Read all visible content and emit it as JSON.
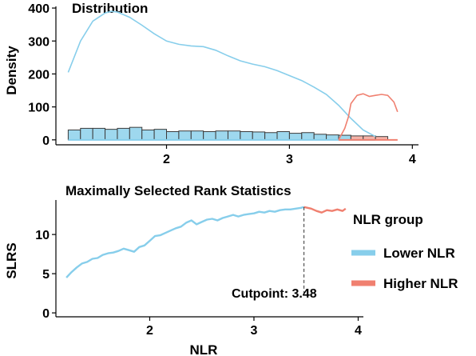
{
  "colors": {
    "lower": "#87CEEB",
    "higher": "#F08070",
    "bar_fill": "#9ED8EE",
    "bar_stroke": "#3C3C3C",
    "axis": "#000000"
  },
  "legend": {
    "title": "NLR group",
    "items": [
      {
        "label": "Lower NLR",
        "color": "#87CEEB"
      },
      {
        "label": "Higher NLR",
        "color": "#F08070"
      }
    ]
  },
  "chart_data": [
    {
      "type": "histogram+density",
      "title": "Distribution",
      "xlabel": "",
      "ylabel": "Density",
      "xlim": [
        1.1,
        4.05
      ],
      "ylim": [
        -15,
        405
      ],
      "x_ticks": [
        2,
        3,
        4
      ],
      "y_ticks": [
        0,
        100,
        200,
        300,
        400
      ],
      "grid": false,
      "histogram": {
        "bin_edges": [
          1.2,
          1.3,
          1.4,
          1.5,
          1.6,
          1.7,
          1.8,
          1.9,
          2.0,
          2.1,
          2.2,
          2.3,
          2.4,
          2.5,
          2.6,
          2.7,
          2.8,
          2.9,
          3.0,
          3.1,
          3.2,
          3.3,
          3.4,
          3.5,
          3.6,
          3.7,
          3.8
        ],
        "counts": [
          30,
          35,
          35,
          32,
          35,
          38,
          30,
          32,
          25,
          27,
          27,
          25,
          27,
          27,
          25,
          24,
          22,
          25,
          20,
          22,
          17,
          15,
          14,
          12,
          12,
          10
        ],
        "groups": [
          "lower",
          "lower",
          "lower",
          "lower",
          "lower",
          "lower",
          "lower",
          "lower",
          "lower",
          "lower",
          "lower",
          "lower",
          "lower",
          "lower",
          "lower",
          "lower",
          "lower",
          "lower",
          "lower",
          "lower",
          "lower",
          "lower",
          "lower",
          "higher",
          "higher",
          "higher"
        ]
      },
      "series": [
        {
          "group": "lower",
          "x": [
            1.2,
            1.3,
            1.4,
            1.5,
            1.55,
            1.6,
            1.7,
            1.8,
            1.9,
            2.0,
            2.1,
            2.2,
            2.3,
            2.4,
            2.5,
            2.6,
            2.7,
            2.8,
            2.9,
            3.0,
            3.1,
            3.2,
            3.3,
            3.4,
            3.5,
            3.6,
            3.7
          ],
          "y": [
            205,
            300,
            360,
            385,
            390,
            388,
            372,
            348,
            322,
            300,
            290,
            285,
            283,
            272,
            255,
            240,
            230,
            222,
            210,
            195,
            180,
            160,
            138,
            105,
            65,
            30,
            10
          ]
        },
        {
          "group": "higher",
          "x": [
            3.4,
            3.45,
            3.48,
            3.5,
            3.55,
            3.6,
            3.65,
            3.7,
            3.75,
            3.8,
            3.85,
            3.88
          ],
          "y": [
            0,
            35,
            70,
            110,
            135,
            140,
            132,
            135,
            138,
            135,
            115,
            85
          ]
        }
      ]
    },
    {
      "type": "line",
      "title": "Maximally Selected Rank Statistics",
      "xlabel": "NLR",
      "ylabel": "SLRS",
      "xlim": [
        1.1,
        4.05
      ],
      "ylim": [
        -0.5,
        14.4
      ],
      "x_ticks": [
        2,
        3,
        4
      ],
      "y_ticks": [
        0,
        5,
        10
      ],
      "grid": false,
      "cutpoint": 3.48,
      "cutpoint_label": "Cutpoint: 3.48",
      "series": [
        {
          "group": "lower",
          "x": [
            1.2,
            1.25,
            1.3,
            1.35,
            1.4,
            1.45,
            1.5,
            1.55,
            1.6,
            1.65,
            1.7,
            1.75,
            1.8,
            1.85,
            1.9,
            1.95,
            2.0,
            2.05,
            2.1,
            2.15,
            2.2,
            2.25,
            2.3,
            2.35,
            2.4,
            2.45,
            2.5,
            2.55,
            2.6,
            2.65,
            2.7,
            2.75,
            2.8,
            2.85,
            2.9,
            2.95,
            3.0,
            3.05,
            3.1,
            3.15,
            3.2,
            3.25,
            3.3,
            3.35,
            3.4,
            3.45,
            3.48
          ],
          "y": [
            4.5,
            5.2,
            5.8,
            6.3,
            6.5,
            6.9,
            7.0,
            7.4,
            7.6,
            7.7,
            7.9,
            8.2,
            8.0,
            7.8,
            8.4,
            8.6,
            9.2,
            9.8,
            9.9,
            10.2,
            10.5,
            10.8,
            11.0,
            11.5,
            11.8,
            11.3,
            11.6,
            11.9,
            12.0,
            11.8,
            12.1,
            12.3,
            12.5,
            12.3,
            12.5,
            12.6,
            12.7,
            12.9,
            12.8,
            13.0,
            12.9,
            13.1,
            13.2,
            13.2,
            13.3,
            13.4,
            13.5
          ]
        },
        {
          "group": "higher",
          "x": [
            3.48,
            3.55,
            3.6,
            3.65,
            3.7,
            3.75,
            3.8,
            3.85,
            3.88
          ],
          "y": [
            13.5,
            13.3,
            13.0,
            12.8,
            13.1,
            13.0,
            13.2,
            13.0,
            13.3
          ]
        }
      ]
    }
  ]
}
